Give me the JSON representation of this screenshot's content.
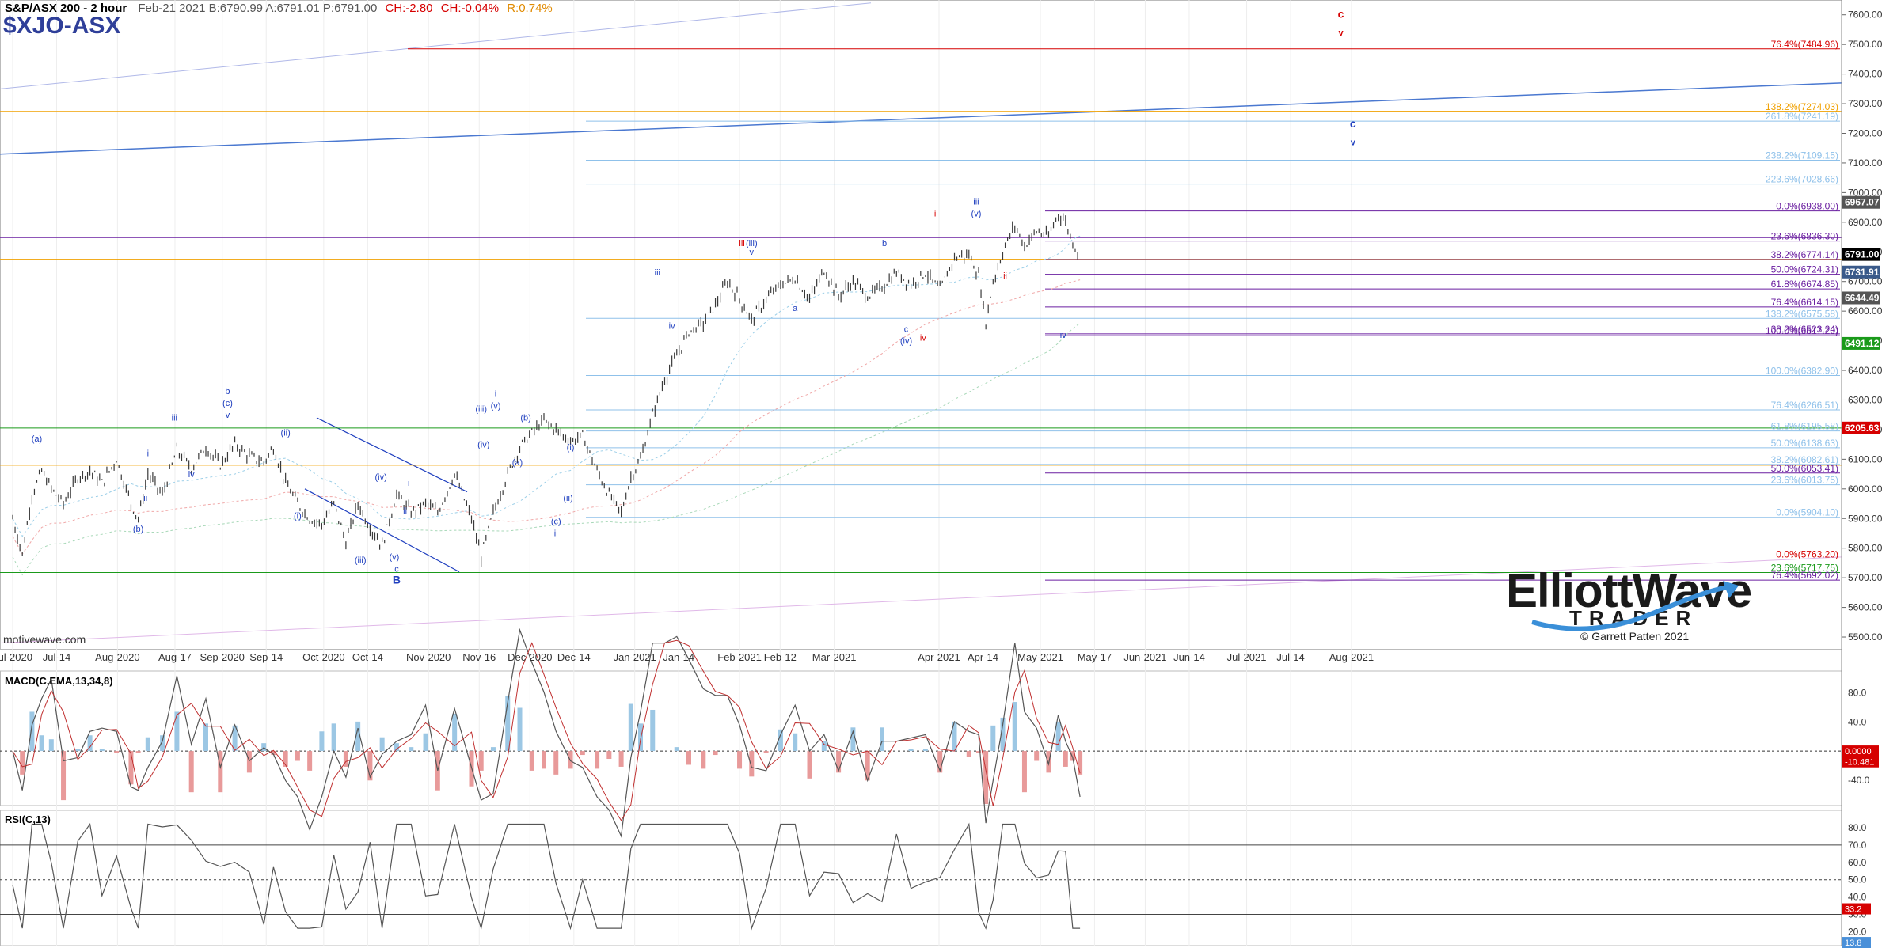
{
  "header": {
    "symbol": "S&P/ASX 200 - 2 hour",
    "info": "Feb-21 2021  B:6790.99  A:6791.01  P:6791.00",
    "change_abs": "CH:-2.80",
    "change_pct": "CH:-0.04%",
    "range": "R:0.74%",
    "ticker": "$XJO-ASX"
  },
  "watermark": "motivewave.com",
  "logo": {
    "line1": "ElliottWave",
    "line2": "TRADER",
    "copyright": "© Garrett Patten 2021"
  },
  "colors": {
    "up": "#1f3fbf",
    "red": "#d60000",
    "purple": "#6a1fa0",
    "orange": "#f0a000",
    "green": "#1a9a1a",
    "lightblue": "#8fc1ea",
    "candle": "#3a3a3a"
  },
  "chart_data": [
    {
      "type": "candlestick",
      "title": "S&P/ASX 200 - 2 hour",
      "x_tick_labels": [
        "Jul-2020",
        "Jul-14",
        "Aug-2020",
        "Aug-17",
        "Sep-2020",
        "Sep-14",
        "Oct-2020",
        "Oct-14",
        "Nov-2020",
        "Nov-16",
        "Dec-2020",
        "Dec-14",
        "Jan-2021",
        "Jan-14",
        "Feb-2021",
        "Feb-12",
        "Mar-2021",
        "Apr-2021",
        "Apr-14",
        "May-2021",
        "May-17",
        "Jun-2021",
        "Jun-14",
        "Jul-2021",
        "Jul-14",
        "Aug-2021"
      ],
      "y_ticks": [
        7600,
        7500,
        7400,
        7300,
        7200,
        7100,
        7000,
        6900,
        6800,
        6700,
        6600,
        6500,
        6400,
        6300,
        6200,
        6100,
        6000,
        5900,
        5800,
        5700,
        5600,
        5500
      ],
      "ylim": [
        5460,
        7650
      ],
      "close_path": [
        {
          "d": 0,
          "v": 5900
        },
        {
          "d": 8,
          "v": 5780
        },
        {
          "d": 16,
          "v": 5980
        },
        {
          "d": 24,
          "v": 6060
        },
        {
          "d": 32,
          "v": 6000
        },
        {
          "d": 42,
          "v": 5950
        },
        {
          "d": 54,
          "v": 6040
        },
        {
          "d": 64,
          "v": 6060
        },
        {
          "d": 74,
          "v": 6020
        },
        {
          "d": 86,
          "v": 6100
        },
        {
          "d": 98,
          "v": 5950
        },
        {
          "d": 104,
          "v": 5900
        },
        {
          "d": 112,
          "v": 6050
        },
        {
          "d": 124,
          "v": 5980
        },
        {
          "d": 136,
          "v": 6130
        },
        {
          "d": 148,
          "v": 6070
        },
        {
          "d": 160,
          "v": 6140
        },
        {
          "d": 172,
          "v": 6080
        },
        {
          "d": 184,
          "v": 6150
        },
        {
          "d": 196,
          "v": 6110
        },
        {
          "d": 208,
          "v": 6090
        },
        {
          "d": 216,
          "v": 6140
        },
        {
          "d": 226,
          "v": 6020
        },
        {
          "d": 236,
          "v": 5950
        },
        {
          "d": 246,
          "v": 5900
        },
        {
          "d": 256,
          "v": 5880
        },
        {
          "d": 266,
          "v": 5950
        },
        {
          "d": 276,
          "v": 5820
        },
        {
          "d": 286,
          "v": 5950
        },
        {
          "d": 296,
          "v": 5870
        },
        {
          "d": 306,
          "v": 5810
        },
        {
          "d": 318,
          "v": 5980
        },
        {
          "d": 330,
          "v": 5920
        },
        {
          "d": 342,
          "v": 5950
        },
        {
          "d": 352,
          "v": 5920
        },
        {
          "d": 366,
          "v": 6050
        },
        {
          "d": 380,
          "v": 5900
        },
        {
          "d": 388,
          "v": 5770
        },
        {
          "d": 398,
          "v": 5920
        },
        {
          "d": 410,
          "v": 6050
        },
        {
          "d": 420,
          "v": 6140
        },
        {
          "d": 430,
          "v": 6190
        },
        {
          "d": 440,
          "v": 6230
        },
        {
          "d": 450,
          "v": 6200
        },
        {
          "d": 462,
          "v": 6160
        },
        {
          "d": 472,
          "v": 6180
        },
        {
          "d": 484,
          "v": 6060
        },
        {
          "d": 494,
          "v": 5980
        },
        {
          "d": 504,
          "v": 5920
        },
        {
          "d": 512,
          "v": 6040
        },
        {
          "d": 520,
          "v": 6100
        },
        {
          "d": 530,
          "v": 6250
        },
        {
          "d": 540,
          "v": 6370
        },
        {
          "d": 550,
          "v": 6450
        },
        {
          "d": 560,
          "v": 6530
        },
        {
          "d": 572,
          "v": 6560
        },
        {
          "d": 582,
          "v": 6620
        },
        {
          "d": 592,
          "v": 6700
        },
        {
          "d": 602,
          "v": 6640
        },
        {
          "d": 612,
          "v": 6570
        },
        {
          "d": 624,
          "v": 6640
        },
        {
          "d": 636,
          "v": 6690
        },
        {
          "d": 648,
          "v": 6710
        },
        {
          "d": 660,
          "v": 6640
        },
        {
          "d": 672,
          "v": 6740
        },
        {
          "d": 684,
          "v": 6650
        },
        {
          "d": 696,
          "v": 6700
        },
        {
          "d": 708,
          "v": 6650
        },
        {
          "d": 720,
          "v": 6680
        },
        {
          "d": 732,
          "v": 6730
        },
        {
          "d": 744,
          "v": 6690
        },
        {
          "d": 756,
          "v": 6730
        },
        {
          "d": 768,
          "v": 6670
        },
        {
          "d": 780,
          "v": 6780
        },
        {
          "d": 792,
          "v": 6790
        },
        {
          "d": 800,
          "v": 6720
        },
        {
          "d": 806,
          "v": 6560
        },
        {
          "d": 812,
          "v": 6700
        },
        {
          "d": 820,
          "v": 6800
        },
        {
          "d": 830,
          "v": 6890
        },
        {
          "d": 838,
          "v": 6820
        },
        {
          "d": 848,
          "v": 6870
        },
        {
          "d": 858,
          "v": 6850
        },
        {
          "d": 866,
          "v": 6930
        },
        {
          "d": 872,
          "v": 6900
        },
        {
          "d": 878,
          "v": 6830
        },
        {
          "d": 884,
          "v": 6790
        }
      ],
      "last_price": 6791.0,
      "fib_levels": [
        {
          "label": "76.4%(7484.96)",
          "v": 7484.96,
          "color": "red"
        },
        {
          "label": "138.2%(7274.03)",
          "v": 7274.03,
          "color": "orange"
        },
        {
          "label": "261.8%(7241.19)",
          "v": 7241.19,
          "color": "lightblue"
        },
        {
          "label": "238.2%(7109.15)",
          "v": 7109.15,
          "color": "lightblue"
        },
        {
          "label": "223.6%(7028.66)",
          "v": 7028.66,
          "color": "lightblue"
        },
        {
          "label": "0.0%(6938.00)",
          "v": 6938.0,
          "color": "purple"
        },
        {
          "label": "23.6%(6836.30)",
          "v": 6836.3,
          "color": "purple"
        },
        {
          "label": "38.2%(6774.14)",
          "v": 6774.14,
          "color": "purple"
        },
        {
          "label": "50.0%(6724.31)",
          "v": 6724.31,
          "color": "purple"
        },
        {
          "label": "61.8%(6674.85)",
          "v": 6674.85,
          "color": "purple"
        },
        {
          "label": "76.4%(6614.15)",
          "v": 6614.15,
          "color": "purple"
        },
        {
          "label": "138.2%(6575.58)",
          "v": 6575.58,
          "color": "lightblue"
        },
        {
          "label": "38.2%(6523.24)",
          "v": 6523.24,
          "color": "purple"
        },
        {
          "label": "100.0%(6517.20)",
          "v": 6517.2,
          "color": "purple"
        },
        {
          "label": "100.0%(6382.90)",
          "v": 6382.9,
          "color": "lightblue"
        },
        {
          "label": "76.4%(6266.51)",
          "v": 6266.51,
          "color": "lightblue"
        },
        {
          "label": "61.8%(6195.58)",
          "v": 6195.58,
          "color": "lightblue"
        },
        {
          "label": "50.0%(6138.63)",
          "v": 6138.63,
          "color": "lightblue"
        },
        {
          "label": "38.2%(6082.61)",
          "v": 6082.61,
          "color": "lightblue"
        },
        {
          "label": "50.0%(6053.41)",
          "v": 6053.41,
          "color": "purple"
        },
        {
          "label": "23.6%(6013.75)",
          "v": 6013.75,
          "color": "lightblue"
        },
        {
          "label": "0.0%(5904.10)",
          "v": 5904.1,
          "color": "lightblue"
        },
        {
          "label": "0.0%(5763.20)",
          "v": 5763.2,
          "color": "red"
        },
        {
          "label": "23.6%(5717.75)",
          "v": 5717.75,
          "color": "green"
        },
        {
          "label": "76.4%(5692.02)",
          "v": 5692.02,
          "color": "purple"
        }
      ],
      "price_tags": [
        {
          "label": "6967.07",
          "v": 6967.07,
          "color": "#555555"
        },
        {
          "label": "6791.00",
          "v": 6791.0,
          "color": "#000000"
        },
        {
          "label": "6731.91",
          "v": 6731.91,
          "color": "#3a5a8a"
        },
        {
          "label": "6644.49",
          "v": 6644.49,
          "color": "#555555"
        },
        {
          "label": "6491.12",
          "v": 6491.12,
          "color": "#1a9a1a"
        },
        {
          "label": "6205.63",
          "v": 6205.63,
          "color": "#d60000"
        }
      ],
      "wave_labels": [
        {
          "t": "(a)",
          "d": 20,
          "v": 6160,
          "c": "blue"
        },
        {
          "t": "(b)",
          "d": 104,
          "v": 5855,
          "c": "blue"
        },
        {
          "t": "iii",
          "d": 134,
          "v": 6230,
          "c": "blue"
        },
        {
          "t": "i",
          "d": 112,
          "v": 6110,
          "c": "blue"
        },
        {
          "t": "ii",
          "d": 110,
          "v": 5960,
          "c": "blue"
        },
        {
          "t": "iv",
          "d": 148,
          "v": 6040,
          "c": "blue"
        },
        {
          "t": "v",
          "d": 178,
          "v": 6240,
          "c": "blue"
        },
        {
          "t": "(c)",
          "d": 178,
          "v": 6280,
          "c": "blue"
        },
        {
          "t": "b",
          "d": 178,
          "v": 6320,
          "c": "blue"
        },
        {
          "t": "(ii)",
          "d": 226,
          "v": 6180,
          "c": "blue"
        },
        {
          "t": "(i)",
          "d": 236,
          "v": 5900,
          "c": "blue"
        },
        {
          "t": "(iii)",
          "d": 288,
          "v": 5750,
          "c": "blue"
        },
        {
          "t": "(iv)",
          "d": 305,
          "v": 6030,
          "c": "blue"
        },
        {
          "t": "(v)",
          "d": 316,
          "v": 5760,
          "c": "blue"
        },
        {
          "t": "c",
          "d": 318,
          "v": 5720,
          "c": "blue"
        },
        {
          "t": "B",
          "d": 318,
          "v": 5680,
          "c": "blue"
        },
        {
          "t": "i",
          "d": 328,
          "v": 6010,
          "c": "blue"
        },
        {
          "t": "ii",
          "d": 325,
          "v": 5915,
          "c": "blue"
        },
        {
          "t": "(iii)",
          "d": 388,
          "v": 6260,
          "c": "blue"
        },
        {
          "t": "(iv)",
          "d": 390,
          "v": 6140,
          "c": "blue"
        },
        {
          "t": "(v)",
          "d": 400,
          "v": 6270,
          "c": "blue"
        },
        {
          "t": "i",
          "d": 400,
          "v": 6310,
          "c": "blue"
        },
        {
          "t": "(a)",
          "d": 418,
          "v": 6080,
          "c": "blue"
        },
        {
          "t": "(b)",
          "d": 425,
          "v": 6230,
          "c": "blue"
        },
        {
          "t": "(c)",
          "d": 450,
          "v": 5880,
          "c": "blue"
        },
        {
          "t": "ii",
          "d": 450,
          "v": 5840,
          "c": "blue"
        },
        {
          "t": "(i)",
          "d": 462,
          "v": 6130,
          "c": "blue"
        },
        {
          "t": "(ii)",
          "d": 460,
          "v": 5960,
          "c": "blue"
        },
        {
          "t": "iii",
          "d": 534,
          "v": 6720,
          "c": "blue"
        },
        {
          "t": "iv",
          "d": 546,
          "v": 6540,
          "c": "blue"
        },
        {
          "t": "(iii)",
          "d": 612,
          "v": 6820,
          "c": "blue"
        },
        {
          "t": "v",
          "d": 612,
          "v": 6790,
          "c": "blue"
        },
        {
          "t": "iii",
          "d": 604,
          "v": 6820,
          "c": "red"
        },
        {
          "t": "a",
          "d": 648,
          "v": 6600,
          "c": "blue"
        },
        {
          "t": "b",
          "d": 722,
          "v": 6820,
          "c": "blue"
        },
        {
          "t": "c",
          "d": 740,
          "v": 6530,
          "c": "blue"
        },
        {
          "t": "(iv)",
          "d": 740,
          "v": 6490,
          "c": "blue"
        },
        {
          "t": "iv",
          "d": 754,
          "v": 6500,
          "c": "red"
        },
        {
          "t": "i",
          "d": 764,
          "v": 6920,
          "c": "red"
        },
        {
          "t": "(v)",
          "d": 798,
          "v": 6920,
          "c": "blue"
        },
        {
          "t": "iii",
          "d": 798,
          "v": 6960,
          "c": "blue"
        },
        {
          "t": "ii",
          "d": 822,
          "v": 6710,
          "c": "red"
        },
        {
          "t": "iv",
          "d": 870,
          "v": 6510,
          "c": "blue"
        },
        {
          "t": "c",
          "d": 1100,
          "v": 7590,
          "c": "red"
        },
        {
          "t": "v",
          "d": 1100,
          "v": 7530,
          "c": "red"
        },
        {
          "t": "c",
          "d": 1110,
          "v": 7220,
          "c": "blue"
        },
        {
          "t": "v",
          "d": 1110,
          "v": 7160,
          "c": "blue"
        }
      ]
    },
    {
      "type": "line",
      "title": "MACD(C,EMA,13,34,8)",
      "y_ticks": [
        80.0,
        40.0,
        0.0,
        -40.0
      ],
      "ylim": [
        -75,
        110
      ],
      "current_tags": [
        "0.0000",
        "-10.481"
      ]
    },
    {
      "type": "line",
      "title": "RSI(C,13)",
      "y_ticks": [
        80.0,
        70.0,
        60.0,
        50.0,
        40.0,
        30.0,
        20.0
      ],
      "ylim": [
        12,
        90
      ],
      "current_tags": [
        "33.2",
        "13.8"
      ]
    }
  ]
}
